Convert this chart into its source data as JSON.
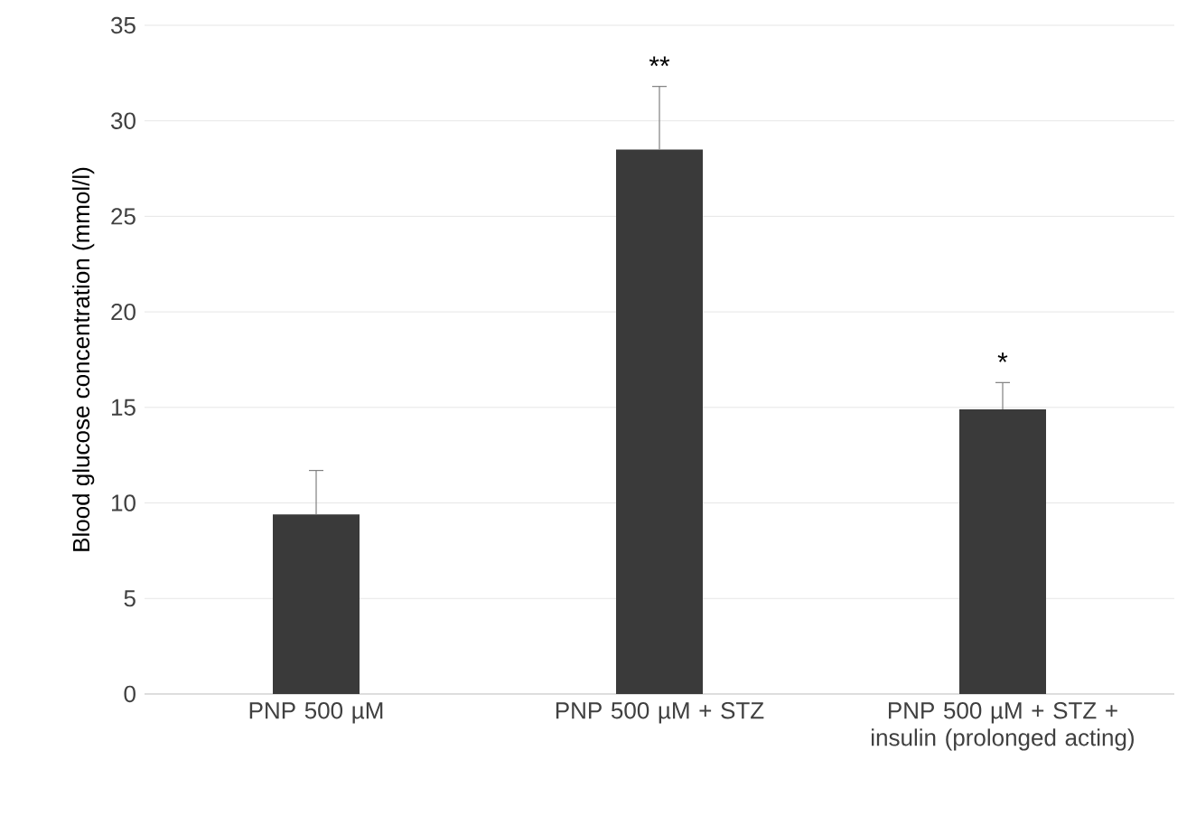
{
  "chart_data": {
    "type": "bar",
    "ylabel": "Blood glucose concentration (mmol/l)",
    "categories": [
      "PNP 500 µM",
      "PNP 500 µM + STZ",
      "PNP 500 µM + STZ + insulin (prolonged acting)"
    ],
    "values": [
      9.4,
      28.5,
      14.9
    ],
    "color": "#3a3a3a",
    "errors": [
      [
        9.4,
        11.7
      ],
      [
        28.5,
        31.8
      ],
      [
        14.9,
        16.3
      ]
    ],
    "ylim": [
      0,
      35
    ],
    "yticks": [
      0,
      5,
      10,
      15,
      20,
      25,
      30,
      35
    ],
    "grid": "y",
    "annotations": [
      {
        "text": "**",
        "x": "PNP 500 µM + STZ",
        "y": 31.8
      },
      {
        "text": "*",
        "x": "PNP 500 µM + STZ + insulin (prolonged acting)",
        "y": 16.3
      }
    ]
  }
}
